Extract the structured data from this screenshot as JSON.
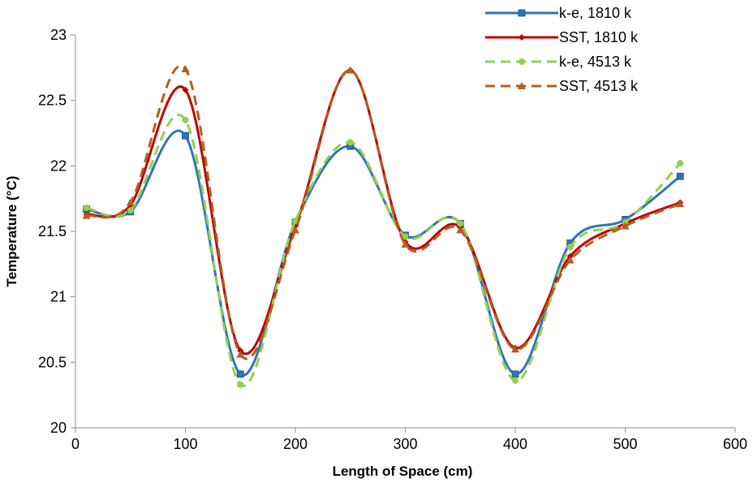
{
  "chart_data": {
    "type": "line",
    "title": "",
    "xlabel": "Length of Space (cm)",
    "ylabel": "Temperature (°C)",
    "xlim": [
      0,
      600
    ],
    "ylim": [
      20,
      23
    ],
    "x_ticks": [
      0,
      100,
      200,
      300,
      400,
      500,
      600
    ],
    "y_ticks": [
      20,
      20.5,
      21,
      21.5,
      22,
      22.5,
      23
    ],
    "grid": false,
    "smooth": true,
    "legend_position": "top-right",
    "x": [
      10,
      50,
      100,
      150,
      200,
      250,
      300,
      350,
      400,
      450,
      500,
      550
    ],
    "series": [
      {
        "name": "k-e, 1810 k",
        "color": "#2E75B6",
        "line": "solid",
        "marker": "square",
        "values": [
          21.67,
          21.65,
          22.23,
          20.41,
          21.57,
          22.15,
          21.47,
          21.56,
          20.41,
          21.41,
          21.59,
          21.92
        ]
      },
      {
        "name": "SST, 1810 k",
        "color": "#C00000",
        "line": "solid",
        "marker": "diamond",
        "values": [
          21.63,
          21.7,
          22.58,
          20.59,
          21.54,
          22.73,
          21.42,
          21.53,
          20.61,
          21.31,
          21.56,
          21.72
        ]
      },
      {
        "name": "k-e, 4513 k",
        "color": "#92D050",
        "line": "dashed",
        "marker": "circle",
        "values": [
          21.68,
          21.66,
          22.35,
          20.33,
          21.58,
          22.18,
          21.46,
          21.56,
          20.36,
          21.38,
          21.57,
          22.02
        ]
      },
      {
        "name": "SST, 4513 k",
        "color": "#B35E1E",
        "line": "dashed",
        "marker": "triangle",
        "values": [
          21.62,
          21.72,
          22.74,
          20.56,
          21.51,
          22.73,
          21.4,
          21.51,
          20.6,
          21.28,
          21.54,
          21.71
        ]
      }
    ]
  }
}
